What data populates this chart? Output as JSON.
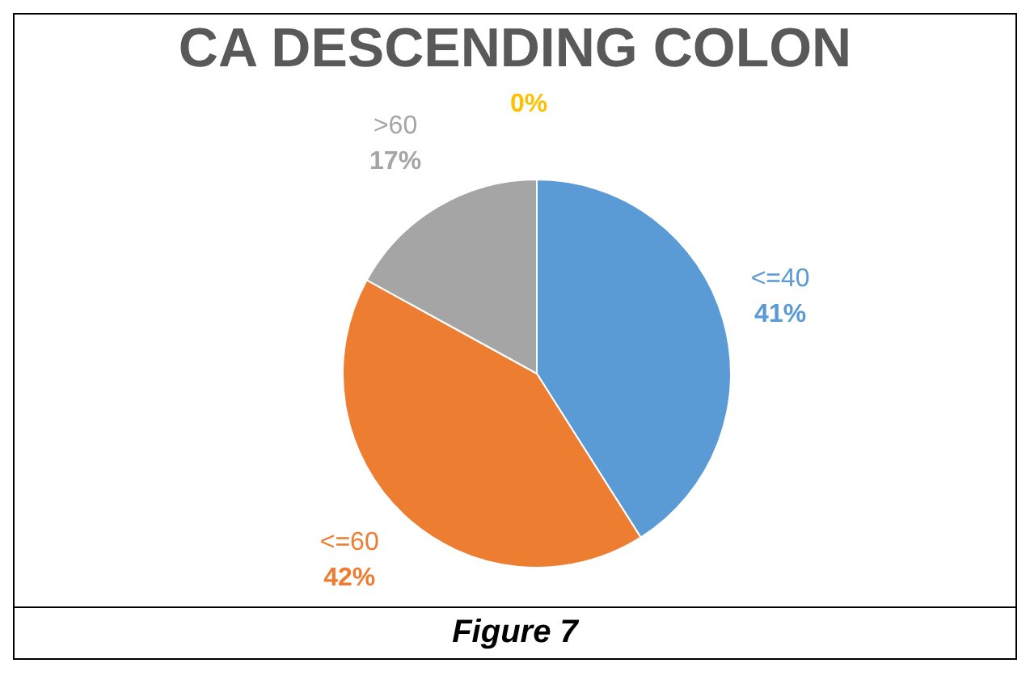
{
  "chart_data": {
    "type": "pie",
    "title": "CA DESCENDING COLON",
    "categories": [
      "<=40",
      "<=60",
      ">60",
      null
    ],
    "values": [
      41,
      42,
      17,
      0
    ],
    "value_labels": [
      "41%",
      "42%",
      "17%",
      "0%"
    ],
    "colors": [
      "#5b9bd5",
      "#ed7d31",
      "#a5a5a5",
      "#ffc000"
    ],
    "legend": false,
    "annotations": [
      "Figure 7"
    ]
  }
}
